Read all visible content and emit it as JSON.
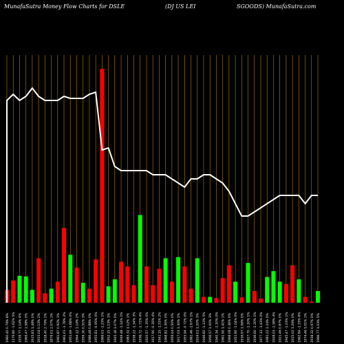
{
  "header": {
    "title_left": "MunafaSutra  Money Flow  Charts for DSLE",
    "title_mid": "(DJ US LEI",
    "title_right": "SGOODS) MunafaSutra.com"
  },
  "colors": {
    "background": "#000000",
    "up": "#00ff00",
    "down": "#ff0000",
    "grid": "#b8860b",
    "line": "#ffffff"
  },
  "chart_data": {
    "type": "bar",
    "title": "MunafaSutra  Money Flow  Charts for DSLE (DJ US LEI SGOODS) MunafaSutra.com",
    "grid": true,
    "categories": [
      "1",
      "2",
      "3",
      "4",
      "5",
      "6",
      "7",
      "8",
      "9",
      "10",
      "11",
      "12",
      "13",
      "14",
      "15",
      "16",
      "17",
      "18",
      "19",
      "20",
      "21",
      "22",
      "23",
      "24",
      "25",
      "26",
      "27",
      "28",
      "29",
      "30",
      "31",
      "32",
      "33",
      "34",
      "35",
      "36",
      "37",
      "38",
      "39",
      "40",
      "41",
      "42",
      "43",
      "44",
      "45",
      "46",
      "47",
      "48",
      "49",
      "50"
    ],
    "tick_labels": [
      "1960.40 0.79% 6%",
      "1179.80 -1.62% 5%",
      "1939.77 1.14% 4%",
      "1969.47 1.58% 0%",
      "1915.81 1.48% 0%",
      "1915.04 0.13% 2%",
      "1918.40 2.79% 2%",
      "1879.01 2.07% 1%",
      "1961.87 0.92% 1%",
      "1961.01 -1.78% 2%",
      "1951.69 -1.68% 0%",
      "1964.12 1.14% 2%",
      "1959.30 0.51% 3%",
      "1986.48 0.88% 0%",
      "1955.81 -0.95% 0%",
      "1969.01 -1.23% 1%",
      "1952.15 1.13% 1%",
      "1945.16 1.07% 0%",
      "1949.48 -1.14% 1%",
      "1983.32 1.12% 1%",
      "1938.22 -1.34% 3%",
      "1936.72 -1.71% 4%",
      "1920.57 -1.35% 0%",
      "1917.90 -0.35% 4%",
      "1941.15 -1.31% 2%",
      "1968.82 1.30% 0%",
      "1959.44 0.50% 0%",
      "1917.03 1.30% 2%",
      "1955.94 -0.72% 0%",
      "1982.46 -1.67% 1%",
      "1924.01 1.20% 3%",
      "1946.82 -1.13% 5%",
      "1956.57 1.00% 3%",
      "1940.34 -1.10% 0%",
      "1961.90 1.41% 1%",
      "1968.08 0.36% 0%",
      "1951.80 -1.04% 0%",
      "1916.97 1.06% 0%",
      "1927.70 -1.10% 1%",
      "1936.60 -1.20% 1%",
      "1977.13 -1.43% 0%",
      "1981.22 1.24% 0%",
      "1928.03 -1.58% 4%",
      "1921.46 0.87% 0%",
      "1945.47 -1.03% 1%",
      "1915.02 1.29% 0%",
      "1962.84 -1.33% 6%",
      "1974.46 1.01% 1%",
      "1938.32 0.97% 0%",
      "1966.77 1.03% 5%"
    ],
    "bar_colors": [
      "down",
      "down",
      "up",
      "up",
      "up",
      "down",
      "down",
      "up",
      "down",
      "down",
      "up",
      "down",
      "up",
      "down",
      "down",
      "down",
      "up",
      "up",
      "down",
      "down",
      "down",
      "up",
      "down",
      "down",
      "down",
      "up",
      "down",
      "up",
      "down",
      "down",
      "up",
      "down",
      "up",
      "down",
      "down",
      "down",
      "up",
      "down",
      "up",
      "down",
      "down",
      "up",
      "up",
      "up",
      "down",
      "down",
      "up",
      "down",
      "down",
      "up"
    ],
    "bar_values": [
      11,
      19,
      23,
      22.5,
      11,
      38,
      8,
      12,
      18,
      64,
      41,
      30,
      17,
      12,
      37,
      200,
      14,
      20,
      35,
      31,
      15,
      75,
      31,
      15,
      29,
      38,
      18,
      39,
      31,
      12,
      38,
      5,
      5,
      4,
      21,
      32,
      18,
      4.5,
      34,
      10,
      3.5,
      22,
      27,
      18,
      16,
      32,
      20,
      5,
      1,
      10
    ],
    "money_flow_line": [
      69,
      70.5,
      69,
      70,
      72,
      70,
      69,
      69,
      69,
      70,
      69.5,
      69.5,
      69.5,
      70.5,
      71,
      57,
      57.5,
      53,
      52,
      52,
      52,
      52,
      52,
      51,
      51,
      51,
      50,
      49,
      48,
      50,
      50,
      51,
      51,
      50,
      49,
      47,
      44,
      41,
      41,
      42,
      43,
      44,
      45,
      46,
      46,
      46,
      46,
      44,
      46,
      46
    ]
  }
}
